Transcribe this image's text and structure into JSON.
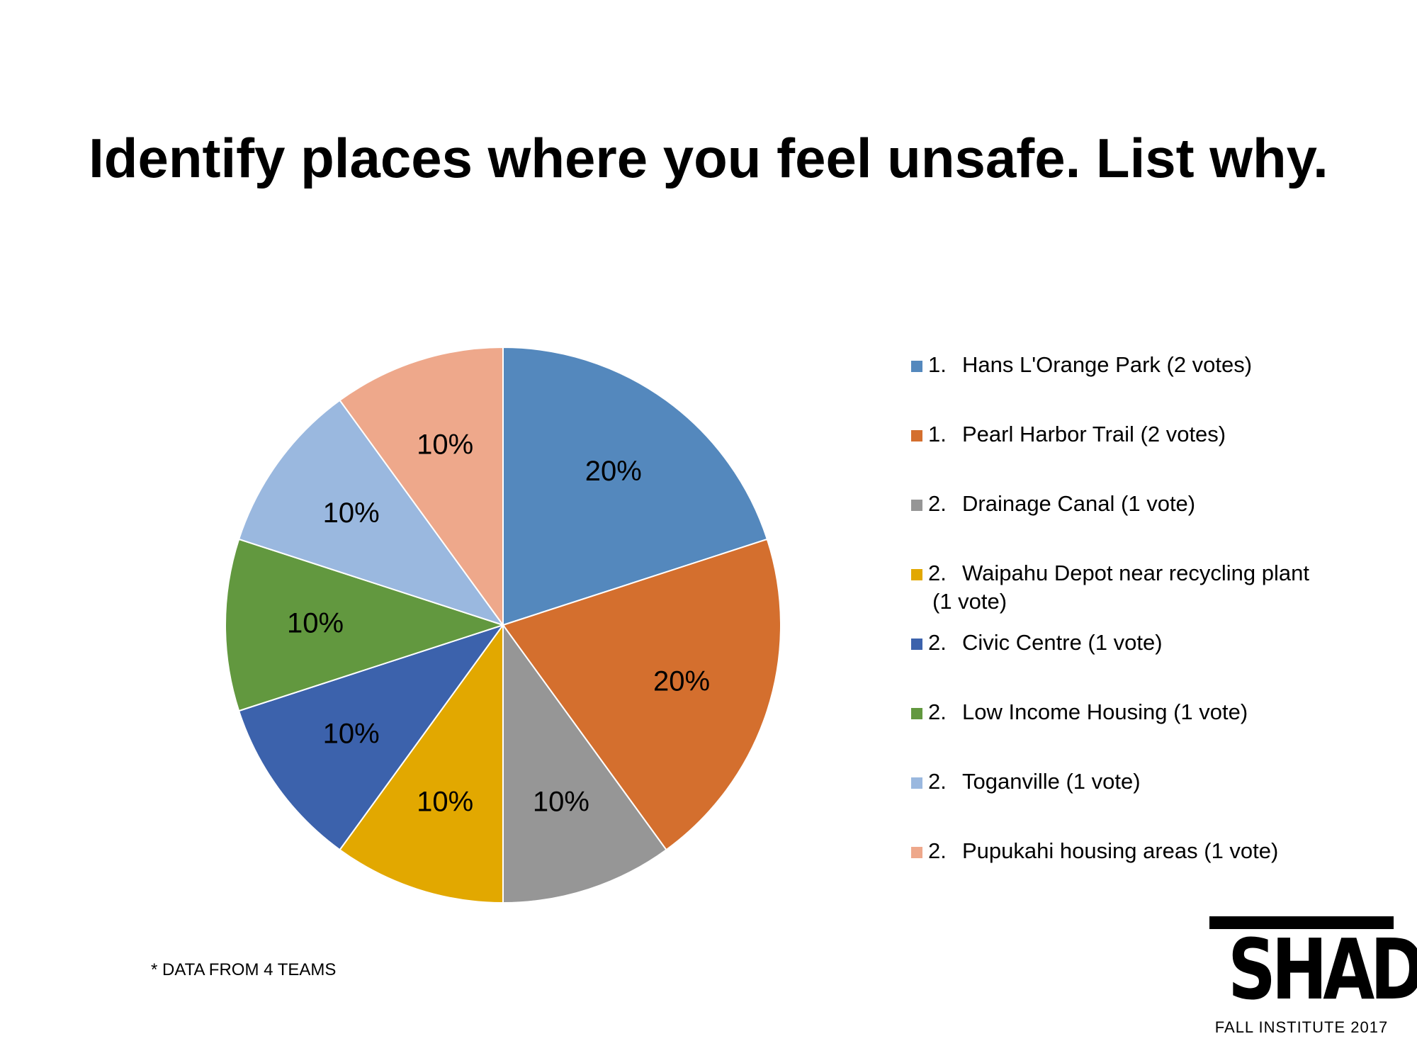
{
  "title": "Identify places where you feel unsafe. List why.",
  "footnote": "* DATA FROM 4 TEAMS",
  "logo": {
    "word": "SHADE",
    "subtitle": "FALL INSTITUTE 2017"
  },
  "chart_data": {
    "type": "pie",
    "title": "Identify places where you feel unsafe. List why.",
    "start_angle_deg": 0,
    "direction": "clockwise",
    "slices": [
      {
        "rank": "1.",
        "label": "Hans L'Orange Park (2 votes)",
        "value": 20,
        "display": "20%",
        "color": "#5488BD"
      },
      {
        "rank": "1.",
        "label": "Pearl Harbor Trail (2 votes)",
        "value": 20,
        "display": "20%",
        "color": "#D46F2E"
      },
      {
        "rank": "2.",
        "label": "Drainage Canal (1 vote)",
        "value": 10,
        "display": "10%",
        "color": "#969696"
      },
      {
        "rank": "2.",
        "label": "Waipahu Depot near recycling plant",
        "label_cont": "(1 vote)",
        "value": 10,
        "display": "10%",
        "color": "#E2A800"
      },
      {
        "rank": "2.",
        "label": "Civic Centre (1 vote)",
        "value": 10,
        "display": "10%",
        "color": "#3C62AC"
      },
      {
        "rank": "2.",
        "label": "Low Income Housing (1 vote)",
        "value": 10,
        "display": "10%",
        "color": "#62983F"
      },
      {
        "rank": "2.",
        "label": "Toganville (1 vote)",
        "value": 10,
        "display": "10%",
        "color": "#9AB8DF"
      },
      {
        "rank": "2.",
        "label": "Pupukahi housing areas (1 vote)",
        "value": 10,
        "display": "10%",
        "color": "#EEA88B"
      }
    ],
    "legend_position": "right"
  }
}
